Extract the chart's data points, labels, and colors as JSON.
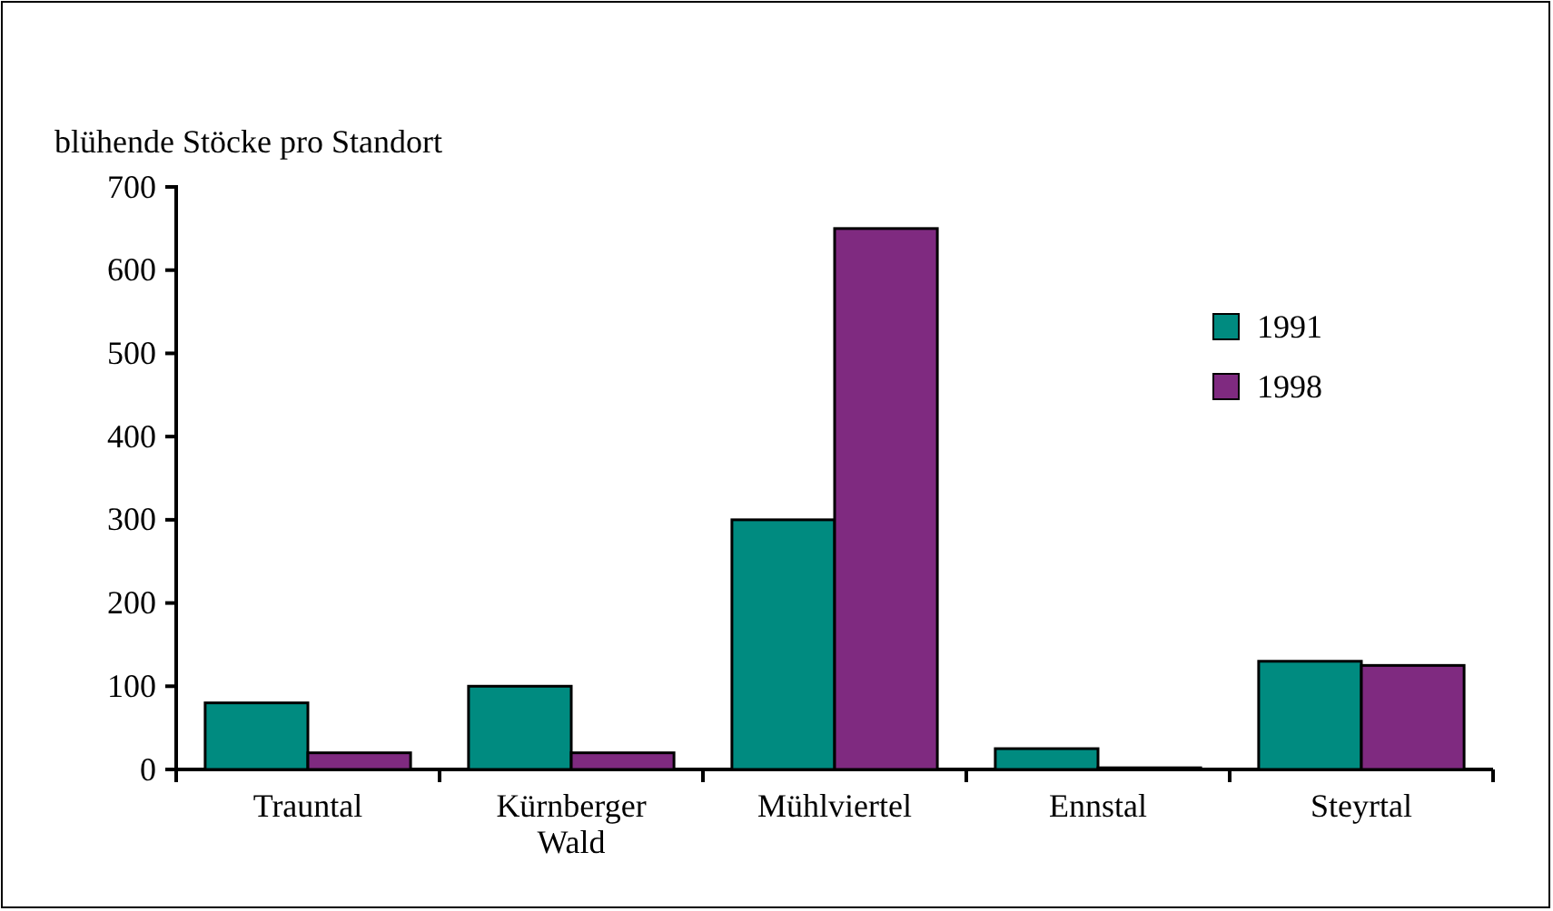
{
  "chart_data": {
    "type": "bar",
    "title": "blühende Stöcke pro Standort",
    "categories": [
      "Trauntal",
      "Kürnberger Wald",
      "Mühlviertel",
      "Ennstal",
      "Steyrtal"
    ],
    "series": [
      {
        "name": "1991",
        "color": "#008b80",
        "values": [
          80,
          100,
          300,
          25,
          130
        ]
      },
      {
        "name": "1998",
        "color": "#7f2a80",
        "values": [
          20,
          20,
          650,
          2,
          125
        ]
      }
    ],
    "ylim": [
      0,
      700
    ],
    "yticks": [
      0,
      100,
      200,
      300,
      400,
      500,
      600,
      700
    ],
    "grid": false,
    "legend": "top right"
  }
}
